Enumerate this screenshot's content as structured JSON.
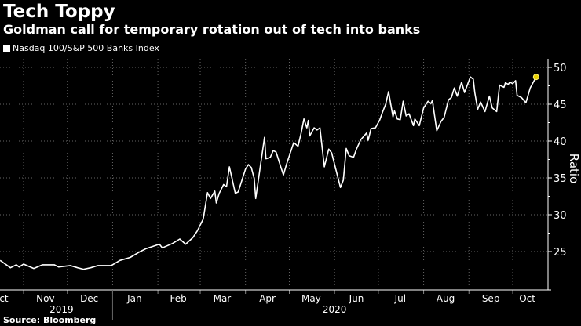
{
  "header": {
    "title": "Tech Toppy",
    "subtitle": "Goldman call for temporary rotation out of tech into banks"
  },
  "footer": {
    "source": "Source: Bloomberg"
  },
  "chart_data": {
    "type": "line",
    "title": "Tech Toppy",
    "subtitle": "Goldman call for temporary rotation out of tech into banks",
    "ylabel": "Ratio",
    "xlabel": "",
    "ylim": [
      21.5,
      51
    ],
    "yticks": [
      25,
      30,
      35,
      40,
      45,
      50
    ],
    "y_axis_side": "right",
    "xlim": [
      "2019-10-16",
      "2020-10-20"
    ],
    "xticks": [
      {
        "label": "Oct",
        "date": "2019-10-16"
      },
      {
        "label": "Nov",
        "date": "2019-11-16"
      },
      {
        "label": "Dec",
        "date": "2019-12-16"
      },
      {
        "label": "Jan",
        "date": "2020-01-16"
      },
      {
        "label": "Feb",
        "date": "2020-02-15"
      },
      {
        "label": "Mar",
        "date": "2020-03-16"
      },
      {
        "label": "Apr",
        "date": "2020-04-16"
      },
      {
        "label": "May",
        "date": "2020-05-16"
      },
      {
        "label": "Jun",
        "date": "2020-06-16"
      },
      {
        "label": "Jul",
        "date": "2020-07-16"
      },
      {
        "label": "Aug",
        "date": "2020-08-16"
      },
      {
        "label": "Sep",
        "date": "2020-09-16"
      },
      {
        "label": "Oct",
        "date": "2020-10-11"
      }
    ],
    "year_labels": [
      {
        "label": "2019",
        "date": "2019-11-27"
      },
      {
        "label": "2020",
        "date": "2020-06-01"
      }
    ],
    "grid": true,
    "legend": "top-left",
    "colors": {
      "line": "#ffffff",
      "last_point": "#e8d000",
      "background": "#000000",
      "grid": "#666666"
    },
    "series": [
      {
        "name": "Nasdaq 100/S&P 500 Banks Index",
        "points": [
          [
            "2019-10-16",
            23.8
          ],
          [
            "2019-10-23",
            22.8
          ],
          [
            "2019-10-27",
            23.2
          ],
          [
            "2019-10-29",
            22.9
          ],
          [
            "2019-11-01",
            23.3
          ],
          [
            "2019-11-08",
            22.7
          ],
          [
            "2019-11-14",
            23.2
          ],
          [
            "2019-11-22",
            23.2
          ],
          [
            "2019-11-25",
            22.9
          ],
          [
            "2019-12-03",
            23.1
          ],
          [
            "2019-12-08",
            22.8
          ],
          [
            "2019-12-12",
            22.6
          ],
          [
            "2019-12-17",
            22.8
          ],
          [
            "2019-12-22",
            23.1
          ],
          [
            "2019-12-31",
            23.1
          ],
          [
            "2020-01-06",
            23.8
          ],
          [
            "2020-01-13",
            24.2
          ],
          [
            "2020-01-19",
            24.9
          ],
          [
            "2020-01-24",
            25.4
          ],
          [
            "2020-02-02",
            26.0
          ],
          [
            "2020-02-04",
            25.5
          ],
          [
            "2020-02-11",
            26.1
          ],
          [
            "2020-02-16",
            26.7
          ],
          [
            "2020-02-20",
            26.0
          ],
          [
            "2020-02-25",
            26.9
          ],
          [
            "2020-02-28",
            27.8
          ],
          [
            "2020-03-03",
            29.4
          ],
          [
            "2020-03-06",
            33.0
          ],
          [
            "2020-03-08",
            32.2
          ],
          [
            "2020-03-11",
            33.2
          ],
          [
            "2020-03-12",
            31.6
          ],
          [
            "2020-03-14",
            32.9
          ],
          [
            "2020-03-17",
            34.1
          ],
          [
            "2020-03-19",
            33.8
          ],
          [
            "2020-03-21",
            36.5
          ],
          [
            "2020-03-25",
            32.9
          ],
          [
            "2020-03-27",
            33.1
          ],
          [
            "2020-04-01",
            36.2
          ],
          [
            "2020-04-03",
            36.8
          ],
          [
            "2020-04-05",
            36.4
          ],
          [
            "2020-04-07",
            34.9
          ],
          [
            "2020-04-08",
            32.2
          ],
          [
            "2020-04-14",
            40.5
          ],
          [
            "2020-04-15",
            37.6
          ],
          [
            "2020-04-18",
            37.8
          ],
          [
            "2020-04-20",
            38.7
          ],
          [
            "2020-04-22",
            38.5
          ],
          [
            "2020-04-25",
            36.6
          ],
          [
            "2020-04-27",
            35.4
          ],
          [
            "2020-04-29",
            36.8
          ],
          [
            "2020-05-04",
            39.8
          ],
          [
            "2020-05-07",
            39.3
          ],
          [
            "2020-05-09",
            41.0
          ],
          [
            "2020-05-11",
            43.0
          ],
          [
            "2020-05-13",
            41.8
          ],
          [
            "2020-05-14",
            42.8
          ],
          [
            "2020-05-15",
            40.7
          ],
          [
            "2020-05-18",
            41.8
          ],
          [
            "2020-05-20",
            41.5
          ],
          [
            "2020-05-22",
            41.8
          ],
          [
            "2020-05-25",
            36.5
          ],
          [
            "2020-05-28",
            38.9
          ],
          [
            "2020-05-30",
            38.4
          ],
          [
            "2020-06-05",
            33.7
          ],
          [
            "2020-06-07",
            34.7
          ],
          [
            "2020-06-09",
            39.0
          ],
          [
            "2020-06-11",
            38.0
          ],
          [
            "2020-06-14",
            37.8
          ],
          [
            "2020-06-16",
            38.9
          ],
          [
            "2020-06-19",
            40.2
          ],
          [
            "2020-06-23",
            41.1
          ],
          [
            "2020-06-24",
            40.1
          ],
          [
            "2020-06-26",
            41.7
          ],
          [
            "2020-06-29",
            41.8
          ],
          [
            "2020-07-02",
            42.9
          ],
          [
            "2020-07-04",
            44.0
          ],
          [
            "2020-07-06",
            45.0
          ],
          [
            "2020-07-08",
            46.7
          ],
          [
            "2020-07-11",
            43.3
          ],
          [
            "2020-07-12",
            44.1
          ],
          [
            "2020-07-14",
            43.0
          ],
          [
            "2020-07-16",
            42.9
          ],
          [
            "2020-07-18",
            45.4
          ],
          [
            "2020-07-20",
            43.4
          ],
          [
            "2020-07-22",
            43.7
          ],
          [
            "2020-07-25",
            42.1
          ],
          [
            "2020-07-26",
            43.0
          ],
          [
            "2020-07-29",
            42.1
          ],
          [
            "2020-08-01",
            44.5
          ],
          [
            "2020-08-04",
            45.4
          ],
          [
            "2020-08-06",
            45.1
          ],
          [
            "2020-08-07",
            45.5
          ],
          [
            "2020-08-10",
            41.4
          ],
          [
            "2020-08-13",
            42.7
          ],
          [
            "2020-08-15",
            43.2
          ],
          [
            "2020-08-18",
            45.6
          ],
          [
            "2020-08-20",
            45.9
          ],
          [
            "2020-08-22",
            47.2
          ],
          [
            "2020-08-24",
            46.1
          ],
          [
            "2020-08-27",
            48.0
          ],
          [
            "2020-08-29",
            46.6
          ],
          [
            "2020-09-02",
            48.7
          ],
          [
            "2020-09-04",
            48.4
          ],
          [
            "2020-09-05",
            46.6
          ],
          [
            "2020-09-07",
            44.3
          ],
          [
            "2020-09-09",
            45.3
          ],
          [
            "2020-09-12",
            44.0
          ],
          [
            "2020-09-15",
            46.1
          ],
          [
            "2020-09-17",
            44.5
          ],
          [
            "2020-09-20",
            44.0
          ],
          [
            "2020-09-22",
            47.6
          ],
          [
            "2020-09-25",
            47.3
          ],
          [
            "2020-09-26",
            47.9
          ],
          [
            "2020-09-28",
            47.7
          ],
          [
            "2020-09-29",
            48.0
          ],
          [
            "2020-10-01",
            47.8
          ],
          [
            "2020-10-03",
            48.2
          ],
          [
            "2020-10-04",
            46.2
          ],
          [
            "2020-10-07",
            45.9
          ],
          [
            "2020-10-10",
            45.2
          ],
          [
            "2020-10-13",
            47.2
          ],
          [
            "2020-10-17",
            48.7
          ]
        ]
      }
    ]
  }
}
